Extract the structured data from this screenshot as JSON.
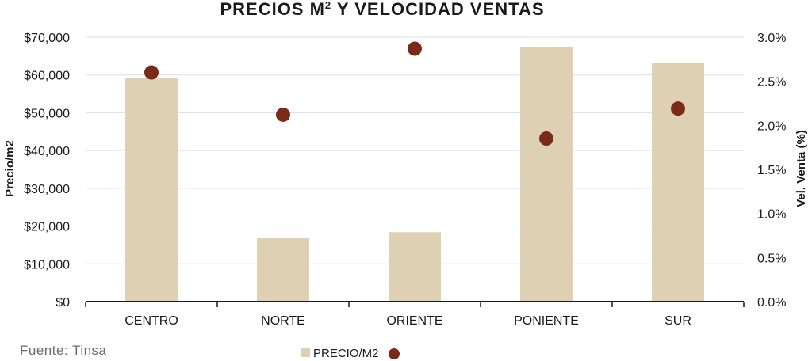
{
  "colors": {
    "bar": "#ddd0b3",
    "dot": "#7a2a18",
    "grid": "#dedede",
    "axis": "#1a1a1a"
  },
  "chart_data": {
    "type": "bar",
    "title": "PRECIOS M",
    "title_superscript": "2",
    "title_rest": " Y VELOCIDAD VENTAS",
    "categories": [
      "CENTRO",
      "NORTE",
      "ORIENTE",
      "PONIENTE",
      "SUR"
    ],
    "series": [
      {
        "name": "PRECIO/M2",
        "type": "bar",
        "axis": "left",
        "values": [
          59300,
          16900,
          18400,
          67500,
          63100
        ]
      },
      {
        "name": "",
        "type": "scatter",
        "axis": "right",
        "values": [
          2.6,
          2.12,
          2.87,
          1.85,
          2.19
        ]
      }
    ],
    "ylabel": "Precio/m2",
    "y2label": "Vel. Venta (%)",
    "ylim": [
      0,
      70000
    ],
    "y2lim": [
      0,
      3.0
    ],
    "yticks": [
      "$0",
      "$10,000",
      "$20,000",
      "$30,000",
      "$40,000",
      "$50,000",
      "$60,000",
      "$70,000"
    ],
    "y2ticks": [
      "0.0%",
      "0.5%",
      "1.0%",
      "1.5%",
      "2.0%",
      "2.5%",
      "3.0%"
    ],
    "grid": true,
    "legend": "bottom-center",
    "legend_label": "PRECIO/M2"
  },
  "source": "Fuente: Tinsa"
}
